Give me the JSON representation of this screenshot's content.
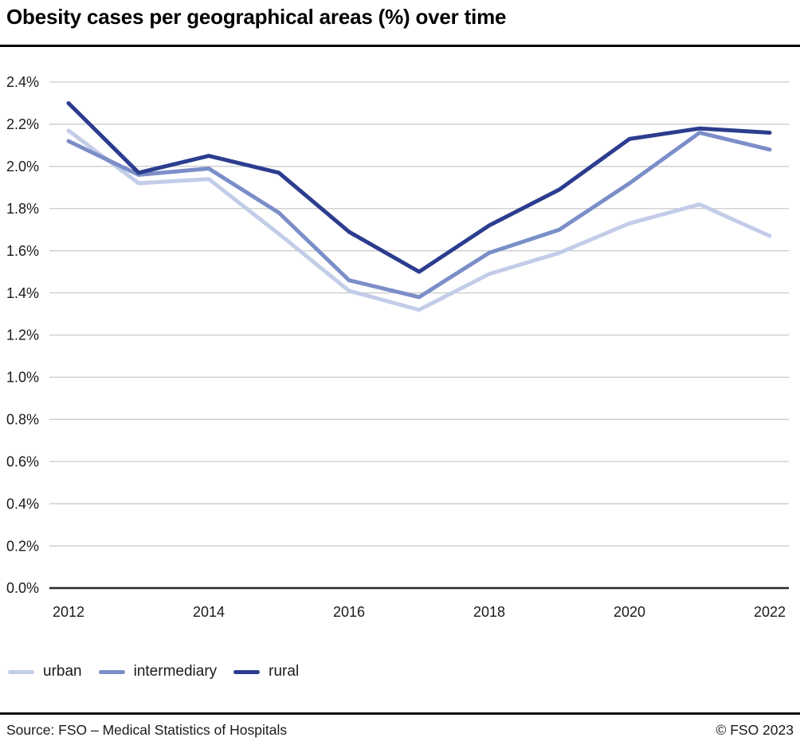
{
  "title": "Obesity cases per geographical areas (%) over time",
  "footer": {
    "source": "Source: FSO – Medical Statistics of Hospitals",
    "copyright": "© FSO 2023"
  },
  "style": {
    "grid_color": "#cccccc",
    "baseline_color": "#262626",
    "text_color": "#1a1a1a"
  },
  "chart_data": {
    "type": "line",
    "title": "Obesity cases per geographical areas (%) over time",
    "x": [
      2012,
      2013,
      2014,
      2015,
      2016,
      2017,
      2018,
      2019,
      2020,
      2021,
      2022
    ],
    "x_tick_labels": [
      "2012",
      "2014",
      "2016",
      "2018",
      "2020",
      "2022"
    ],
    "series": [
      {
        "name": "urban",
        "color": "#c3cde8",
        "values": [
          2.17,
          1.92,
          1.94,
          1.68,
          1.41,
          1.32,
          1.49,
          1.59,
          1.73,
          1.82,
          1.67
        ]
      },
      {
        "name": "intermediary",
        "color": "#7b8ec8",
        "values": [
          2.12,
          1.96,
          1.99,
          1.78,
          1.46,
          1.38,
          1.59,
          1.7,
          1.92,
          2.16,
          2.08
        ]
      },
      {
        "name": "rural",
        "color": "#2c3d8f",
        "values": [
          2.3,
          1.97,
          2.05,
          1.97,
          1.69,
          1.5,
          1.72,
          1.89,
          2.13,
          2.18,
          2.16
        ]
      }
    ],
    "ylabel": "",
    "xlabel": "",
    "ylim": [
      0,
      2.4
    ],
    "y_tick_step": 0.2,
    "y_tick_suffix": "%",
    "grid": "horizontal",
    "legend_position": "bottom"
  }
}
